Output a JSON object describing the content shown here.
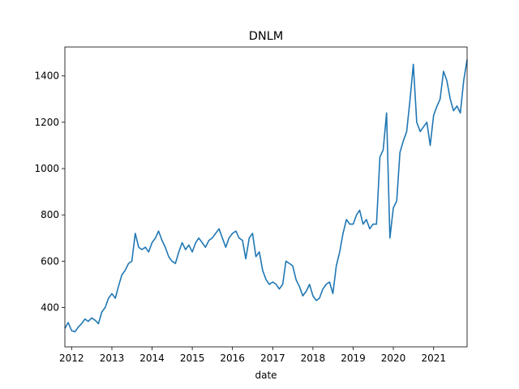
{
  "chart_data": {
    "type": "line",
    "title": "DNLM",
    "xlabel": "date",
    "ylabel": "",
    "x_axis": "date",
    "xlim": [
      "2011-11-01",
      "2021-11-01"
    ],
    "ylim": [
      230,
      1525
    ],
    "xticks": [
      {
        "label": "2012",
        "date": "2012-01-01"
      },
      {
        "label": "2013",
        "date": "2013-01-01"
      },
      {
        "label": "2014",
        "date": "2014-01-01"
      },
      {
        "label": "2015",
        "date": "2015-01-01"
      },
      {
        "label": "2016",
        "date": "2016-01-01"
      },
      {
        "label": "2017",
        "date": "2017-01-01"
      },
      {
        "label": "2018",
        "date": "2018-01-01"
      },
      {
        "label": "2019",
        "date": "2019-01-01"
      },
      {
        "label": "2020",
        "date": "2020-01-01"
      },
      {
        "label": "2021",
        "date": "2021-01-01"
      }
    ],
    "yticks": [
      400,
      600,
      800,
      1000,
      1200,
      1400
    ],
    "grid": false,
    "color": "#1f77b4",
    "series": [
      {
        "x": [
          "2011-11-01",
          "2011-12-01",
          "2012-01-01",
          "2012-02-01",
          "2012-03-01",
          "2012-04-01",
          "2012-05-01",
          "2012-06-01",
          "2012-07-01",
          "2012-08-01",
          "2012-09-01",
          "2012-10-01",
          "2012-11-01",
          "2012-12-01",
          "2013-01-01",
          "2013-02-01",
          "2013-03-01",
          "2013-04-01",
          "2013-05-01",
          "2013-06-01",
          "2013-07-01",
          "2013-08-01",
          "2013-09-01",
          "2013-10-01",
          "2013-11-01",
          "2013-12-01",
          "2014-01-01",
          "2014-02-01",
          "2014-03-01",
          "2014-04-01",
          "2014-05-01",
          "2014-06-01",
          "2014-07-01",
          "2014-08-01",
          "2014-09-01",
          "2014-10-01",
          "2014-11-01",
          "2014-12-01",
          "2015-01-01",
          "2015-02-01",
          "2015-03-01",
          "2015-04-01",
          "2015-05-01",
          "2015-06-01",
          "2015-07-01",
          "2015-08-01",
          "2015-09-01",
          "2015-10-01",
          "2015-11-01",
          "2015-12-01",
          "2016-01-01",
          "2016-02-01",
          "2016-03-01",
          "2016-04-01",
          "2016-05-01",
          "2016-06-01",
          "2016-07-01",
          "2016-08-01",
          "2016-09-01",
          "2016-10-01",
          "2016-11-01",
          "2016-12-01",
          "2017-01-01",
          "2017-02-01",
          "2017-03-01",
          "2017-04-01",
          "2017-05-01",
          "2017-06-01",
          "2017-07-01",
          "2017-08-01",
          "2017-09-01",
          "2017-10-01",
          "2017-11-01",
          "2017-12-01",
          "2018-01-01",
          "2018-02-01",
          "2018-03-01",
          "2018-04-01",
          "2018-05-01",
          "2018-06-01",
          "2018-07-01",
          "2018-08-01",
          "2018-09-01",
          "2018-10-01",
          "2018-11-01",
          "2018-12-01",
          "2019-01-01",
          "2019-02-01",
          "2019-03-01",
          "2019-04-01",
          "2019-05-01",
          "2019-06-01",
          "2019-07-01",
          "2019-08-01",
          "2019-09-01",
          "2019-10-01",
          "2019-11-01",
          "2019-12-01",
          "2020-01-01",
          "2020-02-01",
          "2020-03-01",
          "2020-04-01",
          "2020-05-01",
          "2020-06-01",
          "2020-07-01",
          "2020-08-01",
          "2020-09-01",
          "2020-10-01",
          "2020-11-01",
          "2020-12-01",
          "2021-01-01",
          "2021-02-01",
          "2021-03-01",
          "2021-04-01",
          "2021-05-01",
          "2021-06-01",
          "2021-07-01",
          "2021-08-01",
          "2021-09-01",
          "2021-10-01",
          "2021-11-01"
        ],
        "y": [
          310,
          335,
          300,
          295,
          315,
          330,
          350,
          340,
          355,
          345,
          330,
          380,
          400,
          440,
          460,
          440,
          490,
          540,
          560,
          590,
          600,
          720,
          660,
          650,
          660,
          640,
          680,
          700,
          730,
          690,
          660,
          620,
          600,
          590,
          640,
          680,
          650,
          670,
          640,
          680,
          700,
          680,
          660,
          690,
          700,
          720,
          740,
          700,
          660,
          700,
          720,
          730,
          700,
          690,
          610,
          700,
          720,
          620,
          640,
          560,
          520,
          500,
          510,
          500,
          480,
          500,
          600,
          590,
          580,
          520,
          490,
          450,
          470,
          500,
          450,
          430,
          440,
          480,
          500,
          510,
          460,
          580,
          640,
          720,
          780,
          760,
          760,
          800,
          820,
          760,
          780,
          740,
          760,
          760,
          1050,
          1080,
          1240,
          700,
          830,
          860,
          1070,
          1120,
          1160,
          1300,
          1450,
          1200,
          1160,
          1180,
          1200,
          1100,
          1230,
          1270,
          1300,
          1420,
          1380,
          1300,
          1250,
          1270,
          1240,
          1380,
          1470
        ]
      }
    ]
  }
}
